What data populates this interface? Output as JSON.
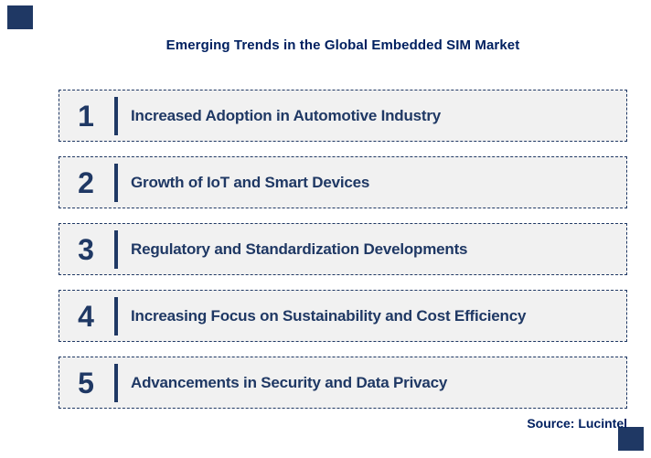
{
  "page": {
    "title": "Emerging Trends in the Global Embedded SIM Market",
    "source": "Source: Lucintel",
    "colors": {
      "accent_navy": "#1F3864",
      "title_navy": "#002060",
      "row_fill": "#F1F1F1",
      "background": "#FFFFFF"
    },
    "trends": [
      {
        "number": "1",
        "label": "Increased Adoption in Automotive Industry"
      },
      {
        "number": "2",
        "label": "Growth of IoT and Smart Devices"
      },
      {
        "number": "3",
        "label": "Regulatory and Standardization Developments"
      },
      {
        "number": "4",
        "label": "Increasing Focus on Sustainability and Cost Efficiency"
      },
      {
        "number": "5",
        "label": "Advancements in Security and Data Privacy"
      }
    ]
  }
}
